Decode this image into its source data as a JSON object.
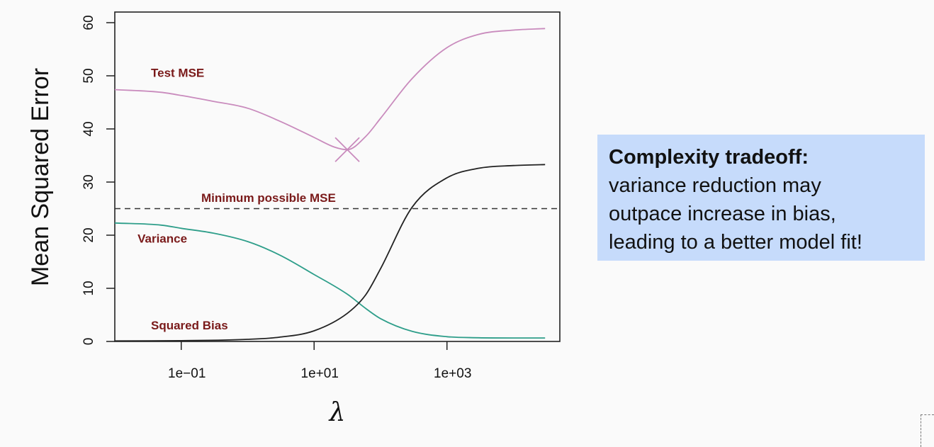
{
  "chart_data": {
    "type": "line",
    "xlabel": "λ",
    "ylabel": "Mean Squared Error",
    "x_scale": "log",
    "xlim": [
      0.01,
      50000
    ],
    "ylim": [
      0,
      62
    ],
    "x_ticks": [
      {
        "value": 0.1,
        "label": "1e−01"
      },
      {
        "value": 10,
        "label": "1e+01"
      },
      {
        "value": 1000,
        "label": "1e+03"
      }
    ],
    "y_ticks": [
      0,
      10,
      20,
      30,
      40,
      50,
      60
    ],
    "grid": false,
    "series": [
      {
        "name": "Test MSE",
        "color": "#c98bbd",
        "points": [
          [
            0.01,
            47.4
          ],
          [
            0.05,
            46.9
          ],
          [
            0.1,
            46.3
          ],
          [
            0.3,
            45.2
          ],
          [
            1,
            43.9
          ],
          [
            3,
            41.5
          ],
          [
            10,
            38.4
          ],
          [
            20,
            36.6
          ],
          [
            31.6,
            36.1
          ],
          [
            60,
            38.6
          ],
          [
            100,
            42
          ],
          [
            300,
            49.5
          ],
          [
            1000,
            55.3
          ],
          [
            3000,
            57.8
          ],
          [
            10000,
            58.6
          ],
          [
            30000,
            58.9
          ]
        ]
      },
      {
        "name": "Variance",
        "color": "#2e9e8a",
        "points": [
          [
            0.01,
            22.3
          ],
          [
            0.05,
            21.9
          ],
          [
            0.1,
            21.3
          ],
          [
            0.3,
            20.4
          ],
          [
            1,
            18.8
          ],
          [
            3,
            16.3
          ],
          [
            10,
            12.6
          ],
          [
            31.6,
            8.9
          ],
          [
            60,
            6.2
          ],
          [
            100,
            4.3
          ],
          [
            300,
            1.9
          ],
          [
            1000,
            0.9
          ],
          [
            3000,
            0.7
          ],
          [
            10000,
            0.65
          ],
          [
            30000,
            0.65
          ]
        ]
      },
      {
        "name": "Squared Bias",
        "color": "#222222",
        "points": [
          [
            0.01,
            0.1
          ],
          [
            0.1,
            0.15
          ],
          [
            1,
            0.4
          ],
          [
            3,
            0.8
          ],
          [
            10,
            2
          ],
          [
            31.6,
            5.3
          ],
          [
            60,
            8.8
          ],
          [
            100,
            13.7
          ],
          [
            300,
            25.3
          ],
          [
            1000,
            30.8
          ],
          [
            3000,
            32.6
          ],
          [
            10000,
            33.1
          ],
          [
            30000,
            33.3
          ]
        ]
      }
    ],
    "reference_line": {
      "label": "Minimum possible MSE",
      "y": 25,
      "style": "dashed"
    },
    "minimum_marker": {
      "x": 31.6,
      "y": 36.1,
      "shape": "cross"
    },
    "annotations": [
      {
        "text": "Test MSE",
        "x": 0.035,
        "y": 49.8
      },
      {
        "text": "Minimum possible MSE",
        "x": 0.2,
        "y": 26.3
      },
      {
        "text": "Variance",
        "x": 0.022,
        "y": 18.6
      },
      {
        "text": "Squared Bias",
        "x": 0.035,
        "y": 2.3
      }
    ],
    "annotation_color": "#7a1a1a"
  },
  "callout": {
    "heading": "Complexity tradeoff:",
    "lines": [
      "variance reduction may",
      "outpace increase in bias,",
      "leading to a better model fit!"
    ],
    "background": "#c6dbfb"
  }
}
